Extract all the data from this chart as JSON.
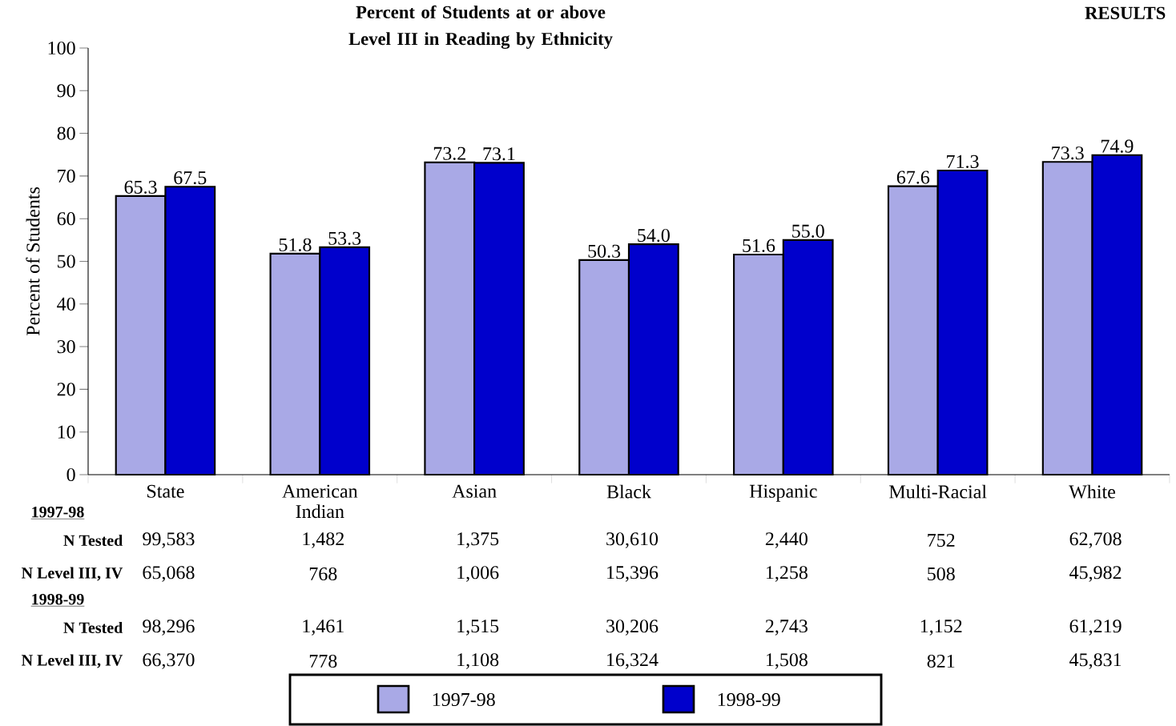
{
  "chart_data": {
    "type": "bar",
    "title": "Percent of Students at or above Level III in Reading by Ethnicity",
    "ylabel": "Percent of Students",
    "categories": [
      "State",
      "American Indian",
      "Asian",
      "Black",
      "Hispanic",
      "Multi-Racial",
      "White"
    ],
    "series": [
      {
        "name": "1997-98",
        "color": "#a9a9e6",
        "values": [
          65.3,
          51.8,
          73.2,
          50.3,
          51.6,
          67.6,
          73.3
        ],
        "value_labels": [
          "65.3",
          "51.8",
          "73.2",
          "50.3",
          "51.6",
          "67.6",
          "73.3"
        ]
      },
      {
        "name": "1998-99",
        "color": "#0000cc",
        "values": [
          67.5,
          53.3,
          73.1,
          54,
          55,
          71.3,
          74.9
        ],
        "value_labels": [
          "67.5",
          "53.3",
          "73.1",
          "54.0",
          "55.0",
          "71.3",
          "74.9"
        ]
      }
    ],
    "ylim": [
      0,
      100
    ],
    "yticks": [
      0,
      10,
      20,
      30,
      40,
      50,
      60,
      70,
      80,
      90,
      100
    ],
    "legend": "bottom",
    "annotations": [
      "RESULTS",
      "1997-98",
      "N Tested",
      "99,583",
      "1,482",
      "1,375",
      "30,610",
      "2,440",
      "752",
      "62,708",
      "N Level III, IV",
      "65,068",
      "768",
      "1,006",
      "15,396",
      "1,258",
      "508",
      "45,982",
      "1998-99",
      "N Tested",
      "98,296",
      "1,461",
      "1,515",
      "30,206",
      "2,743",
      "1,152",
      "61,219",
      "N Level III, IV",
      "66,370",
      "778",
      "1,108",
      "16,324",
      "1,508",
      "821",
      "45,831"
    ]
  }
}
